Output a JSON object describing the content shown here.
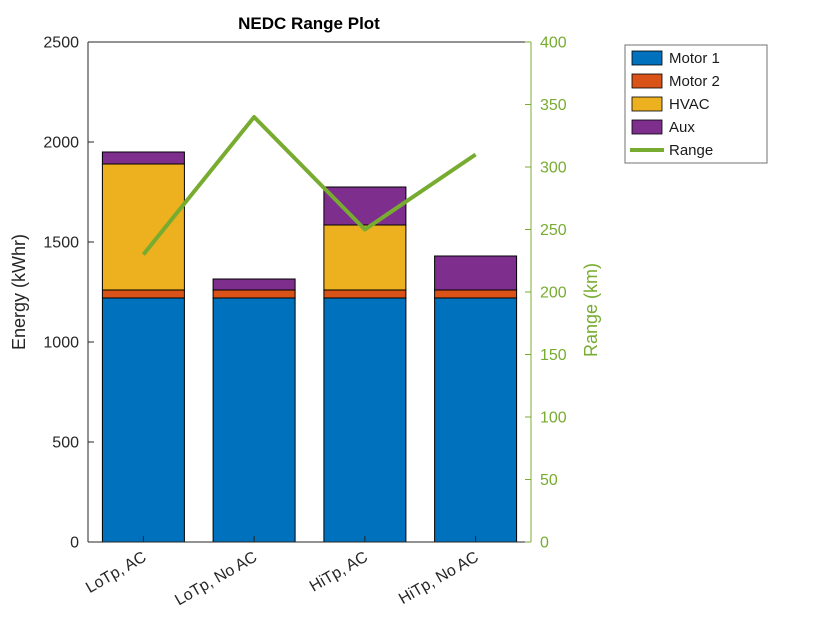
{
  "chart_data": {
    "type": "bar",
    "subtype": "stacked-bars-with-line-overlay",
    "title": "NEDC Range Plot",
    "categories": [
      "LoTp, AC",
      "LoTp, No AC",
      "HiTp, AC",
      "HiTp, No AC"
    ],
    "series": [
      {
        "name": "Motor 1",
        "color": "#0072BD",
        "values": [
          1220,
          1220,
          1220,
          1220
        ]
      },
      {
        "name": "Motor 2",
        "color": "#D95319",
        "values": [
          40,
          40,
          40,
          40
        ]
      },
      {
        "name": "HVAC",
        "color": "#EDB120",
        "values": [
          630,
          0,
          325,
          0
        ]
      },
      {
        "name": "Aux",
        "color": "#7E2F8E",
        "values": [
          60,
          55,
          190,
          170
        ]
      }
    ],
    "line": {
      "name": "Range",
      "color": "#77AC30",
      "axis": "right",
      "values": [
        230,
        340,
        250,
        310
      ]
    },
    "left_axis": {
      "label": "Energy (kWhr)",
      "min": 0,
      "max": 2500,
      "ticks": [
        0,
        500,
        1000,
        1500,
        2000,
        2500
      ],
      "color": "#262626"
    },
    "right_axis": {
      "label": "Range (km)",
      "min": 0,
      "max": 400,
      "ticks": [
        0,
        50,
        100,
        150,
        200,
        250,
        300,
        350,
        400
      ],
      "color": "#77AC30"
    },
    "legend": {
      "entries": [
        "Motor 1",
        "Motor 2",
        "HVAC",
        "Aux",
        "Range"
      ],
      "position": "northeast-outside"
    },
    "grid": false
  }
}
